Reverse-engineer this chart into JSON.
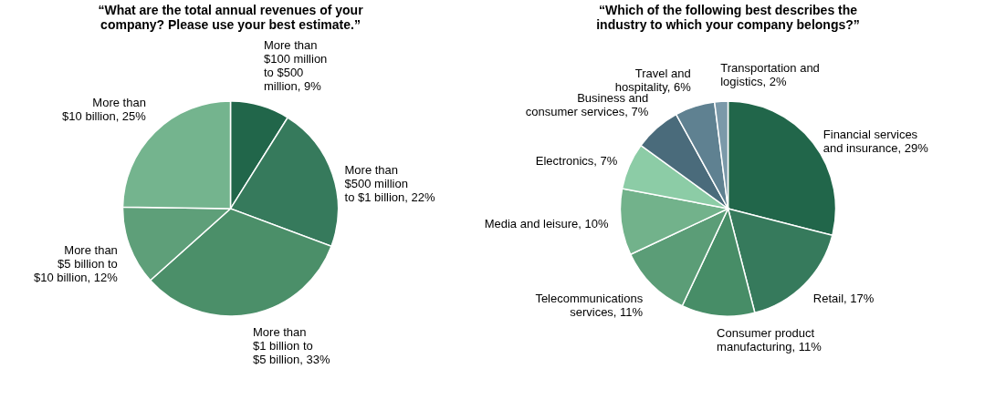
{
  "chart_data": [
    {
      "type": "pie",
      "title": "“What are the total annual revenues of your\ncompany? Please use your best estimate.”",
      "categories": [
        "More than\n$100 million\nto $500\nmillion",
        "More than\n$500 million\nto $1 billion",
        "More than\n$1 billion to\n$5 billion",
        "More than\n$5 billion to\n$10 billion",
        "More than\n$10 billion"
      ],
      "values": [
        9,
        22,
        33,
        12,
        25
      ],
      "value_labels": [
        "9%",
        "22%",
        "33%",
        "12%",
        "25%"
      ],
      "colors": [
        "#21664a",
        "#367a5c",
        "#4b8f69",
        "#5e9f79",
        "#74b48e"
      ],
      "legend": false
    },
    {
      "type": "pie",
      "title": "“Which of the following best describes the\nindustry to which your company belongs?”",
      "categories": [
        "Financial services\nand insurance",
        "Retail",
        "Consumer product\nmanufacturing",
        "Telecommunications\nservices",
        "Media and leisure",
        "Electronics",
        "Business and\nconsumer services",
        "Travel and\nhospitality",
        "Transportation and\nlogistics"
      ],
      "values": [
        29,
        17,
        11,
        11,
        10,
        7,
        7,
        6,
        2
      ],
      "value_labels": [
        "29%",
        "17%",
        "11%",
        "11%",
        "10%",
        "7%",
        "7%",
        "6%",
        "2%"
      ],
      "colors": [
        "#21664a",
        "#367a5c",
        "#478d67",
        "#5b9d77",
        "#72b28b",
        "#8ccca6",
        "#4a6b7b",
        "#5f8191",
        "#7b99a9"
      ],
      "legend": false
    }
  ]
}
